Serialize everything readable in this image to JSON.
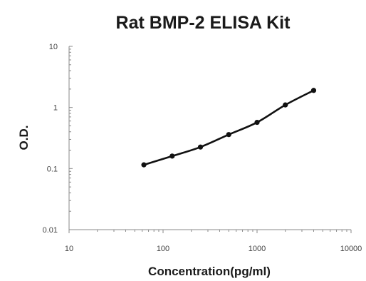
{
  "chart_data": {
    "type": "line",
    "title": "Rat BMP-2 ELISA Kit",
    "xlabel": "Concentration(pg/ml)",
    "ylabel": "O.D.",
    "x_scale": "log",
    "y_scale": "log",
    "xlim": [
      10,
      10000
    ],
    "ylim": [
      0.01,
      10
    ],
    "x_ticks": [
      "10",
      "100",
      "1000",
      "10000"
    ],
    "y_ticks": [
      "0.01",
      "0.1",
      "1",
      "10"
    ],
    "grid": false,
    "legend": "none",
    "series": [
      {
        "x": [
          62.5,
          125,
          250,
          500,
          1000,
          2000,
          4000
        ],
        "y": [
          0.115,
          0.16,
          0.225,
          0.36,
          0.57,
          1.1,
          1.9
        ],
        "color": "#111111",
        "marker": "circle",
        "line": "smooth"
      }
    ]
  }
}
